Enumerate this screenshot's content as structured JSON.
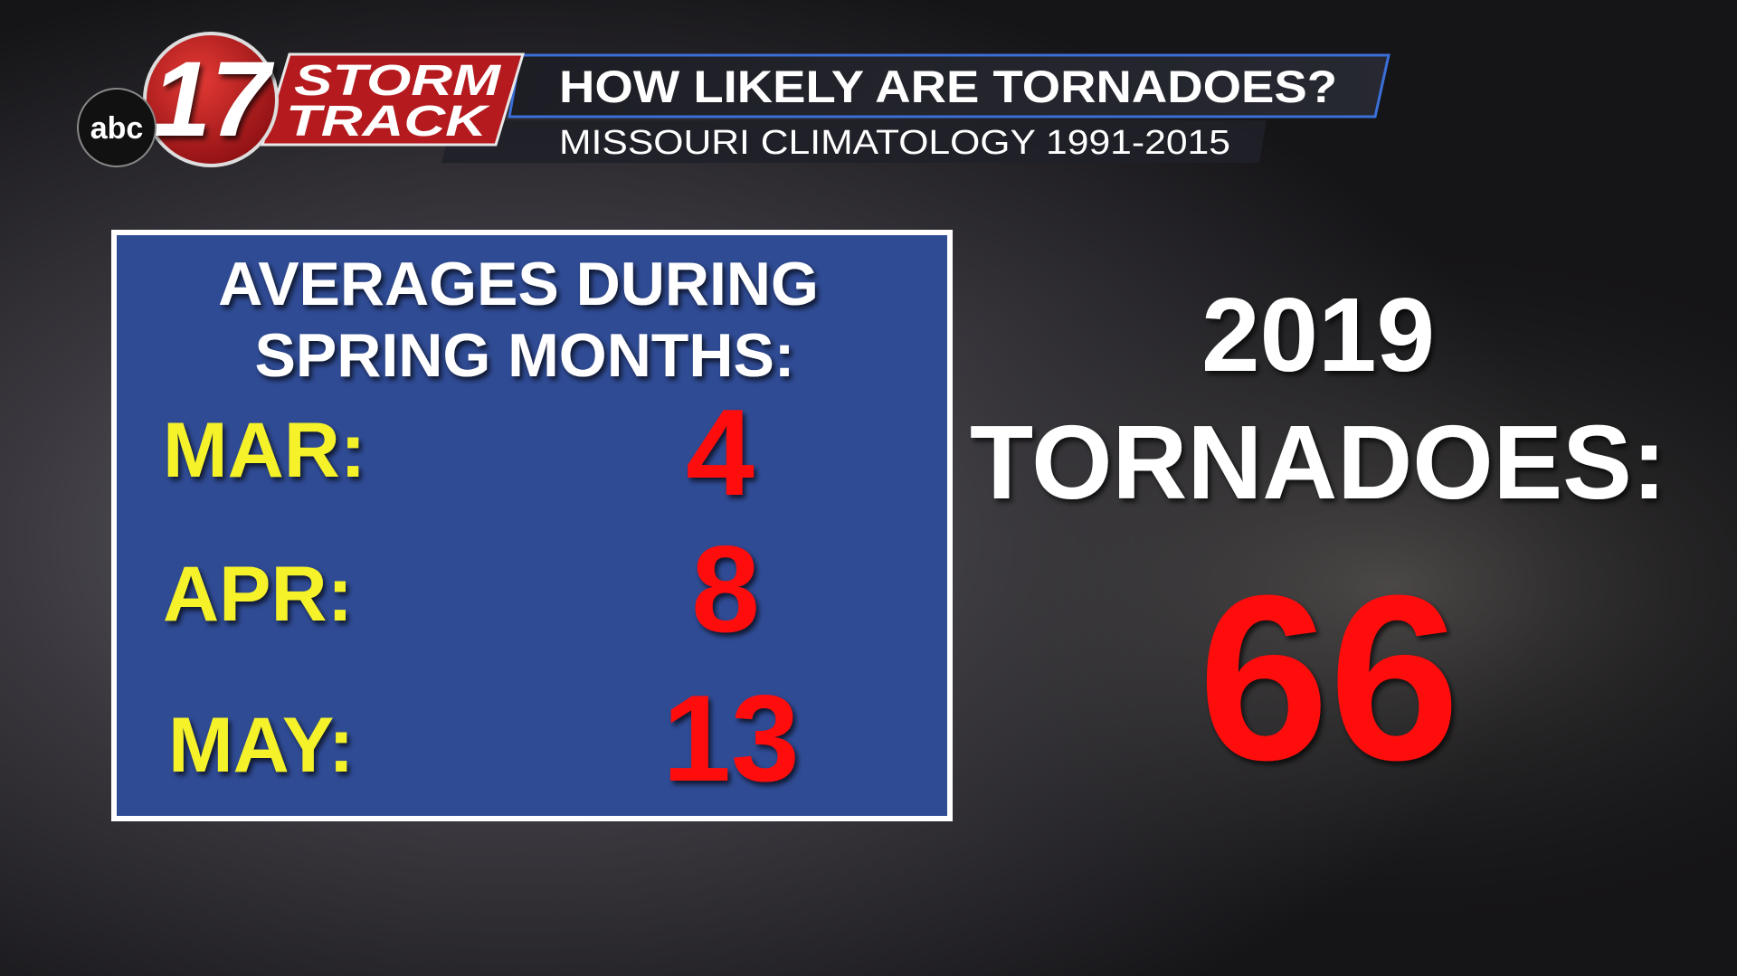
{
  "logo": {
    "network": "abc",
    "channel": "17",
    "line1": "STORM",
    "line2": "TRACK"
  },
  "header": {
    "title": "HOW LIKELY ARE TORNADOES?",
    "subtitle": "MISSOURI CLIMATOLOGY 1991-2015"
  },
  "averages": {
    "heading": [
      "AVERAGES DURING",
      "SPRING MONTHS:"
    ],
    "rows": [
      {
        "month": "MAR:",
        "value": 4
      },
      {
        "month": "APR:",
        "value": 8
      },
      {
        "month": "MAY:",
        "value": 13
      }
    ]
  },
  "current": {
    "year": "2019",
    "label": "TORNADOES:",
    "value": 66
  }
}
